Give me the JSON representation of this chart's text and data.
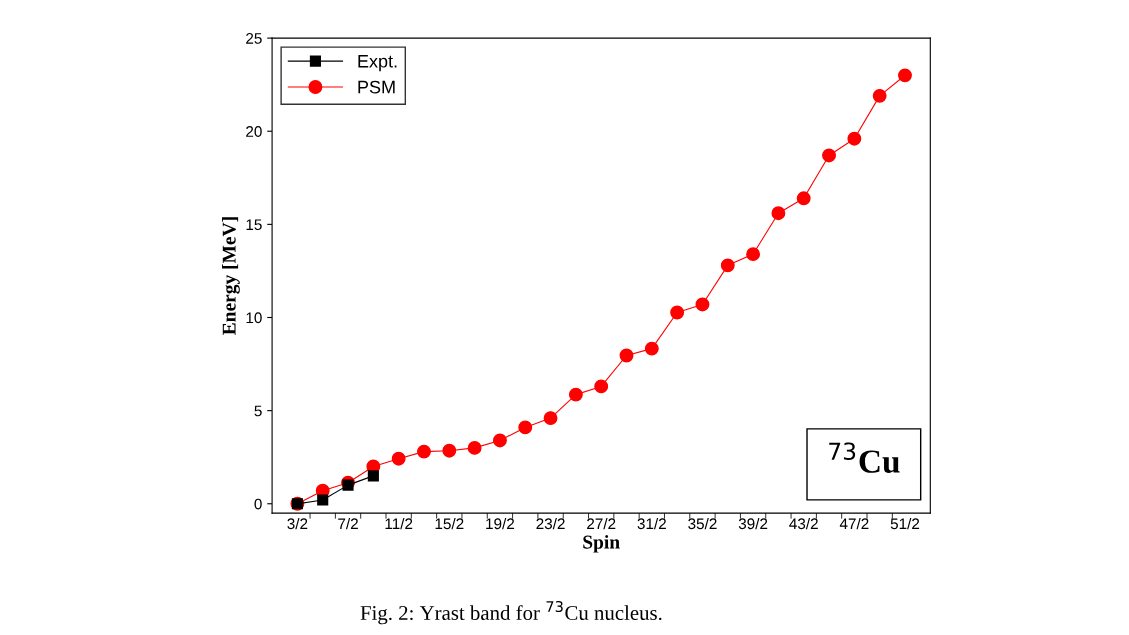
{
  "chart_data": {
    "type": "line",
    "categories": [
      "3/2",
      null,
      "7/2",
      null,
      "11/2",
      null,
      "15/2",
      null,
      "19/2",
      null,
      "23/2",
      null,
      "27/2",
      null,
      "31/2",
      null,
      "35/2",
      null,
      "39/2",
      null,
      "43/2",
      null,
      "47/2",
      null,
      "51/2"
    ],
    "series": [
      {
        "name": "Expt.",
        "color": "#000000",
        "marker": "square",
        "values": [
          0,
          0.2,
          1.0,
          1.5,
          null,
          null,
          null,
          null,
          null,
          null,
          null,
          null,
          null,
          null,
          null,
          null,
          null,
          null,
          null,
          null,
          null,
          null,
          null,
          null,
          null
        ]
      },
      {
        "name": "PSM",
        "color": "#ff0000",
        "marker": "circle",
        "values": [
          0,
          0.7,
          1.13,
          2.0,
          2.42,
          2.8,
          2.85,
          3.0,
          3.4,
          4.1,
          4.6,
          5.86,
          6.3,
          7.96,
          8.33,
          10.27,
          10.7,
          12.8,
          13.4,
          15.6,
          16.4,
          18.7,
          19.6,
          21.9,
          23.0
        ]
      }
    ],
    "xlabel": "Spin",
    "ylabel": "Energy [MeV]",
    "ylim": [
      -0.5,
      25
    ],
    "yticks": [
      0,
      5,
      10,
      15,
      20,
      25
    ],
    "legend": "top left",
    "grid": false,
    "line_style": "solid",
    "annotations": [
      "$^{73}$Cu",
      "Fig. 2: Yrast band for $^{73}$Cu nucleus."
    ]
  }
}
